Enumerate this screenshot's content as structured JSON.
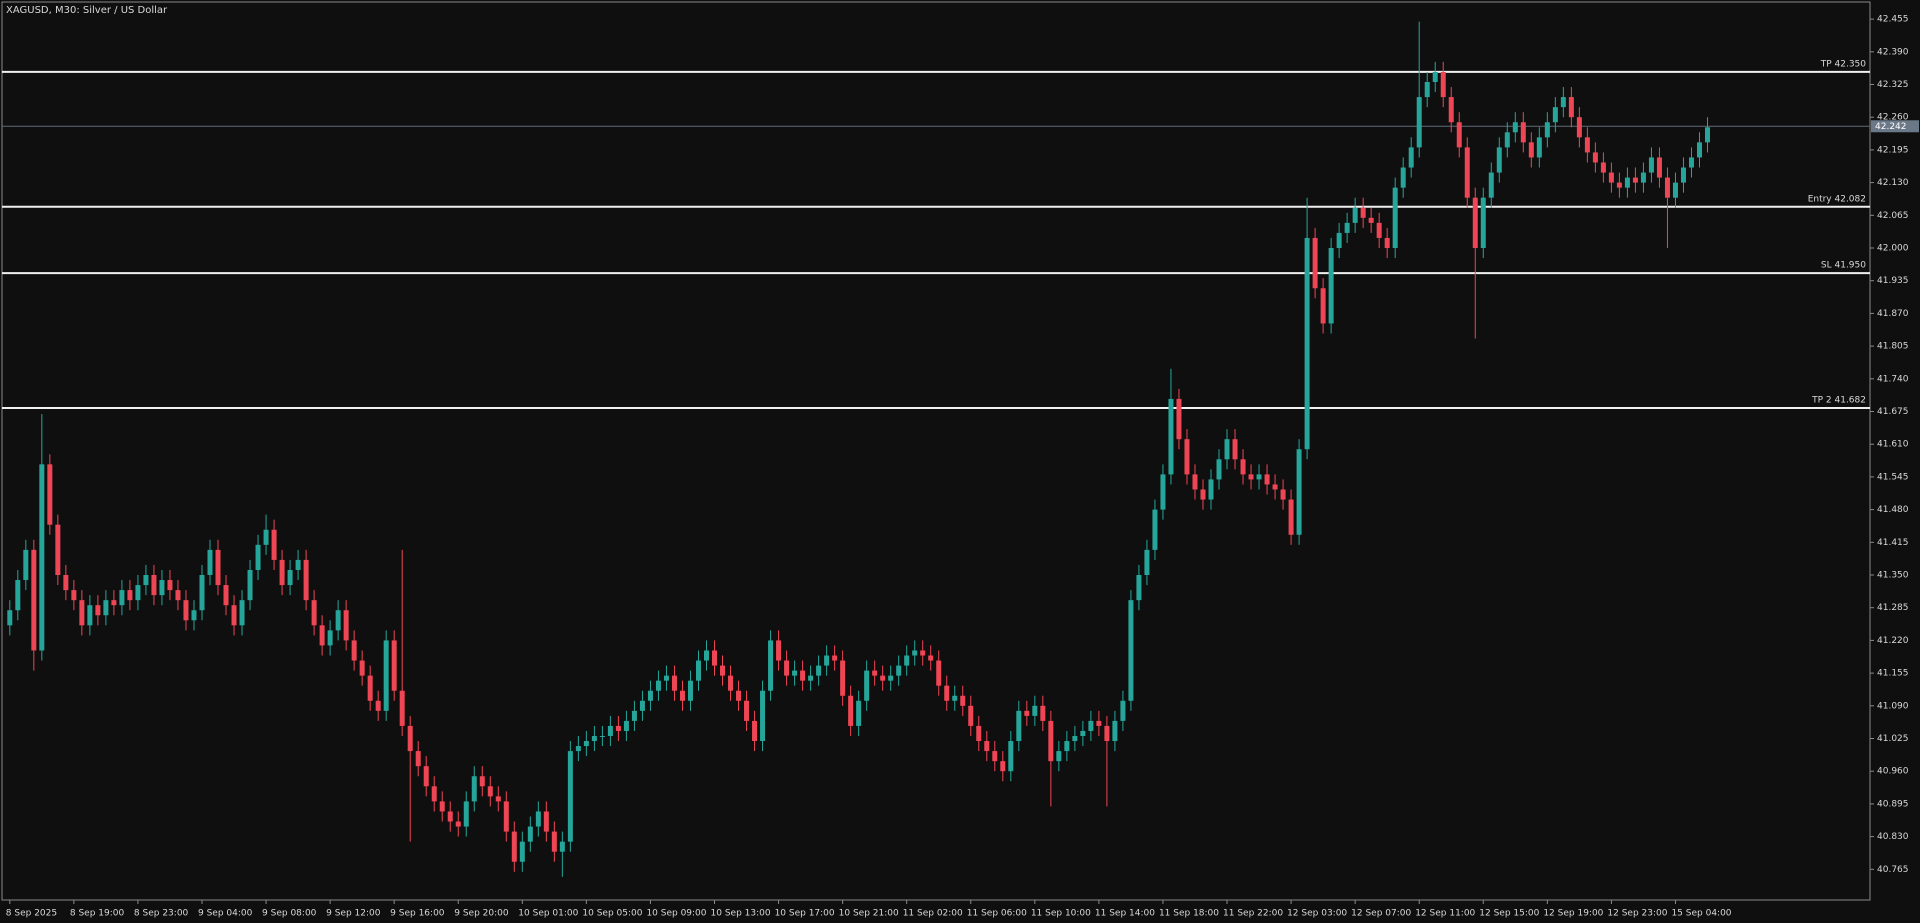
{
  "chart_data": {
    "type": "candlestick",
    "title": "XAGUSD, M30:  Silver / US Dollar",
    "categories": [
      "8 Sep 2025",
      null,
      null,
      null,
      null,
      null,
      null,
      null,
      "8 Sep 19:00",
      null,
      null,
      null,
      null,
      null,
      null,
      null,
      "8 Sep 23:00",
      null,
      null,
      null,
      null,
      null,
      null,
      null,
      "9 Sep 04:00",
      null,
      null,
      null,
      null,
      null,
      null,
      null,
      "9 Sep 08:00",
      null,
      null,
      null,
      null,
      null,
      null,
      null,
      "9 Sep 12:00",
      null,
      null,
      null,
      null,
      null,
      null,
      null,
      "9 Sep 16:00",
      null,
      null,
      null,
      null,
      null,
      null,
      null,
      "9 Sep 20:00",
      null,
      null,
      null,
      null,
      null,
      null,
      null,
      "10 Sep 01:00",
      null,
      null,
      null,
      null,
      null,
      null,
      null,
      "10 Sep 05:00",
      null,
      null,
      null,
      null,
      null,
      null,
      null,
      "10 Sep 09:00",
      null,
      null,
      null,
      null,
      null,
      null,
      null,
      "10 Sep 13:00",
      null,
      null,
      null,
      null,
      null,
      null,
      null,
      "10 Sep 17:00",
      null,
      null,
      null,
      null,
      null,
      null,
      null,
      "10 Sep 21:00",
      null,
      null,
      null,
      null,
      null,
      null,
      null,
      "11 Sep 02:00",
      null,
      null,
      null,
      null,
      null,
      null,
      null,
      "11 Sep 06:00",
      null,
      null,
      null,
      null,
      null,
      null,
      null,
      "11 Sep 10:00",
      null,
      null,
      null,
      null,
      null,
      null,
      null,
      "11 Sep 14:00",
      null,
      null,
      null,
      null,
      null,
      null,
      null,
      "11 Sep 18:00",
      null,
      null,
      null,
      null,
      null,
      null,
      null,
      "11 Sep 22:00",
      null,
      null,
      null,
      null,
      null,
      null,
      null,
      "12 Sep 03:00",
      null,
      null,
      null,
      null,
      null,
      null,
      null,
      "12 Sep 07:00",
      null,
      null,
      null,
      null,
      null,
      null,
      null,
      "12 Sep 11:00",
      null,
      null,
      null,
      null,
      null,
      null,
      null,
      "12 Sep 15:00",
      null,
      null,
      null,
      null,
      null,
      null,
      null,
      "12 Sep 19:00",
      null,
      null,
      null,
      null,
      null,
      null,
      null,
      "12 Sep 23:00",
      null,
      null,
      null,
      null,
      null,
      null,
      null,
      "15 Sep 04:00",
      null,
      null,
      null,
      null
    ],
    "open": [
      41.25,
      41.28,
      41.34,
      41.4,
      41.2,
      41.57,
      41.45,
      41.35,
      41.32,
      41.3,
      41.25,
      41.29,
      41.27,
      41.3,
      41.29,
      41.32,
      41.3,
      41.33,
      41.35,
      41.31,
      41.34,
      41.32,
      41.3,
      41.26,
      41.28,
      41.35,
      41.4,
      41.33,
      41.29,
      41.25,
      41.3,
      41.36,
      41.41,
      41.44,
      41.38,
      41.33,
      41.36,
      41.38,
      41.3,
      41.25,
      41.21,
      41.24,
      41.28,
      41.22,
      41.18,
      41.15,
      41.1,
      41.08,
      41.22,
      41.12,
      41.05,
      41.0,
      40.97,
      40.93,
      40.9,
      40.88,
      40.86,
      40.85,
      40.9,
      40.95,
      40.93,
      40.91,
      40.9,
      40.84,
      40.78,
      40.82,
      40.85,
      40.88,
      40.84,
      40.8,
      40.82,
      41.0,
      41.01,
      41.02,
      41.03,
      41.03,
      41.05,
      41.04,
      41.06,
      41.08,
      41.1,
      41.12,
      41.14,
      41.15,
      41.12,
      41.1,
      41.14,
      41.18,
      41.2,
      41.17,
      41.15,
      41.12,
      41.1,
      41.06,
      41.02,
      41.12,
      41.22,
      41.18,
      41.15,
      41.16,
      41.14,
      41.15,
      41.17,
      41.19,
      41.18,
      41.11,
      41.05,
      41.1,
      41.16,
      41.15,
      41.14,
      41.15,
      41.17,
      41.19,
      41.2,
      41.19,
      41.18,
      41.13,
      41.1,
      41.11,
      41.09,
      41.05,
      41.02,
      41.0,
      40.98,
      40.96,
      41.02,
      41.08,
      41.07,
      41.09,
      41.06,
      40.98,
      41.0,
      41.02,
      41.03,
      41.04,
      41.06,
      41.05,
      41.02,
      41.06,
      41.1,
      41.3,
      41.35,
      41.4,
      41.48,
      41.55,
      41.7,
      41.62,
      41.55,
      41.52,
      41.5,
      41.54,
      41.58,
      41.62,
      41.58,
      41.55,
      41.54,
      41.55,
      41.53,
      41.52,
      41.5,
      41.43,
      41.6,
      42.02,
      41.92,
      41.85,
      42.0,
      42.03,
      42.05,
      42.08,
      42.06,
      42.05,
      42.02,
      42.0,
      42.12,
      42.16,
      42.2,
      42.3,
      42.33,
      42.35,
      42.3,
      42.25,
      42.2,
      42.1,
      42.0,
      42.1,
      42.15,
      42.2,
      42.23,
      42.25,
      42.21,
      42.18,
      42.22,
      42.25,
      42.28,
      42.3,
      42.26,
      42.22,
      42.19,
      42.17,
      42.15,
      42.13,
      42.12,
      42.14,
      42.13,
      42.15,
      42.18,
      42.14,
      42.1,
      42.13,
      42.16,
      42.18,
      42.21
    ],
    "high": [
      41.3,
      41.36,
      41.42,
      41.42,
      41.67,
      41.59,
      41.47,
      41.37,
      41.34,
      41.32,
      41.31,
      41.31,
      41.32,
      41.32,
      41.34,
      41.34,
      41.35,
      41.37,
      41.37,
      41.36,
      41.36,
      41.34,
      41.32,
      41.3,
      41.37,
      41.42,
      41.42,
      41.35,
      41.31,
      41.32,
      41.38,
      41.43,
      41.47,
      41.46,
      41.4,
      41.38,
      41.4,
      41.4,
      41.32,
      41.27,
      41.26,
      41.3,
      41.3,
      41.24,
      41.2,
      41.17,
      41.12,
      41.24,
      41.24,
      41.4,
      41.07,
      41.02,
      40.99,
      40.95,
      40.92,
      40.9,
      40.88,
      40.92,
      40.97,
      40.97,
      40.95,
      40.93,
      40.92,
      40.86,
      40.84,
      40.87,
      40.9,
      40.9,
      40.86,
      40.84,
      41.02,
      41.03,
      41.04,
      41.05,
      41.05,
      41.07,
      41.07,
      41.08,
      41.1,
      41.12,
      41.14,
      41.16,
      41.17,
      41.17,
      41.14,
      41.16,
      41.2,
      41.22,
      41.22,
      41.19,
      41.17,
      41.14,
      41.12,
      41.08,
      41.14,
      41.24,
      41.24,
      41.2,
      41.18,
      41.18,
      41.17,
      41.19,
      41.21,
      41.21,
      41.2,
      41.13,
      41.12,
      41.18,
      41.18,
      41.17,
      41.17,
      41.19,
      41.21,
      41.22,
      41.22,
      41.21,
      41.2,
      41.15,
      41.13,
      41.13,
      41.11,
      41.07,
      41.04,
      41.02,
      41.0,
      41.04,
      41.1,
      41.1,
      41.11,
      41.11,
      41.08,
      41.02,
      41.04,
      41.05,
      41.06,
      41.08,
      41.08,
      41.07,
      41.08,
      41.12,
      41.32,
      41.37,
      41.42,
      41.5,
      41.57,
      41.76,
      41.72,
      41.64,
      41.57,
      41.54,
      41.56,
      41.6,
      41.64,
      41.64,
      41.6,
      41.57,
      41.57,
      41.57,
      41.55,
      41.54,
      41.52,
      41.62,
      42.1,
      42.04,
      41.94,
      42.02,
      42.05,
      42.07,
      42.1,
      42.1,
      42.08,
      42.07,
      42.04,
      42.14,
      42.18,
      42.22,
      42.45,
      42.35,
      42.37,
      42.37,
      42.32,
      42.27,
      42.22,
      42.12,
      42.12,
      42.17,
      42.22,
      42.25,
      42.27,
      42.27,
      42.23,
      42.24,
      42.27,
      42.3,
      42.32,
      42.32,
      42.28,
      42.24,
      42.21,
      42.19,
      42.17,
      42.15,
      42.16,
      42.16,
      42.17,
      42.2,
      42.2,
      42.16,
      42.15,
      42.18,
      42.2,
      42.23,
      42.26
    ],
    "low": [
      41.23,
      41.26,
      41.32,
      41.16,
      41.18,
      41.43,
      41.33,
      41.3,
      41.28,
      41.23,
      41.23,
      41.25,
      41.25,
      41.27,
      41.27,
      41.28,
      41.28,
      41.31,
      41.29,
      41.29,
      41.3,
      41.28,
      41.24,
      41.24,
      41.26,
      41.33,
      41.31,
      41.27,
      41.23,
      41.23,
      41.28,
      41.34,
      41.39,
      41.36,
      41.31,
      41.31,
      41.34,
      41.28,
      41.23,
      41.19,
      41.19,
      41.22,
      41.2,
      41.16,
      41.13,
      41.08,
      41.06,
      41.06,
      41.1,
      41.03,
      40.82,
      40.95,
      40.91,
      40.88,
      40.86,
      40.84,
      40.83,
      40.83,
      40.88,
      40.91,
      40.89,
      40.88,
      40.82,
      40.76,
      40.76,
      40.8,
      40.83,
      40.82,
      40.78,
      40.75,
      40.8,
      40.98,
      40.99,
      41.0,
      41.01,
      41.01,
      41.02,
      41.02,
      41.04,
      41.06,
      41.08,
      41.1,
      41.12,
      41.1,
      41.08,
      41.08,
      41.12,
      41.16,
      41.15,
      41.13,
      41.1,
      41.08,
      41.04,
      41.0,
      41.0,
      41.1,
      41.16,
      41.13,
      41.13,
      41.12,
      41.12,
      41.13,
      41.15,
      41.16,
      41.09,
      41.03,
      41.03,
      41.08,
      41.13,
      41.12,
      41.12,
      41.13,
      41.15,
      41.17,
      41.17,
      41.16,
      41.11,
      41.08,
      41.08,
      41.07,
      41.03,
      41.0,
      40.98,
      40.96,
      40.94,
      40.94,
      41.0,
      41.05,
      41.05,
      41.04,
      40.89,
      40.96,
      40.98,
      41.0,
      41.01,
      41.02,
      41.03,
      40.89,
      41.0,
      41.04,
      41.08,
      41.28,
      41.33,
      41.38,
      41.46,
      41.53,
      41.6,
      41.53,
      41.5,
      41.48,
      41.48,
      41.52,
      41.56,
      41.56,
      41.53,
      41.52,
      41.52,
      41.51,
      41.5,
      41.48,
      41.41,
      41.41,
      41.58,
      41.9,
      41.83,
      41.83,
      41.98,
      42.01,
      42.03,
      42.04,
      42.03,
      42.0,
      41.98,
      41.98,
      42.1,
      42.14,
      42.18,
      42.28,
      42.31,
      42.28,
      42.23,
      42.18,
      42.08,
      41.82,
      41.98,
      42.08,
      42.13,
      42.18,
      42.21,
      42.19,
      42.16,
      42.16,
      42.2,
      42.23,
      42.26,
      42.24,
      42.2,
      42.17,
      42.15,
      42.13,
      42.11,
      42.1,
      42.1,
      42.11,
      42.11,
      42.13,
      42.12,
      42.0,
      42.08,
      42.11,
      42.14,
      42.16,
      42.19
    ],
    "close": [
      41.28,
      41.34,
      41.4,
      41.2,
      41.57,
      41.45,
      41.35,
      41.32,
      41.3,
      41.25,
      41.29,
      41.27,
      41.3,
      41.29,
      41.32,
      41.3,
      41.33,
      41.35,
      41.31,
      41.34,
      41.32,
      41.3,
      41.26,
      41.28,
      41.35,
      41.4,
      41.33,
      41.29,
      41.25,
      41.3,
      41.36,
      41.41,
      41.44,
      41.38,
      41.33,
      41.36,
      41.38,
      41.3,
      41.25,
      41.21,
      41.24,
      41.28,
      41.22,
      41.18,
      41.15,
      41.1,
      41.08,
      41.22,
      41.12,
      41.05,
      41.0,
      40.97,
      40.93,
      40.9,
      40.88,
      40.86,
      40.85,
      40.9,
      40.95,
      40.93,
      40.91,
      40.9,
      40.84,
      40.78,
      40.82,
      40.85,
      40.88,
      40.84,
      40.8,
      40.82,
      41.0,
      41.01,
      41.02,
      41.03,
      41.03,
      41.05,
      41.04,
      41.06,
      41.08,
      41.1,
      41.12,
      41.14,
      41.15,
      41.12,
      41.1,
      41.14,
      41.18,
      41.2,
      41.17,
      41.15,
      41.12,
      41.1,
      41.06,
      41.02,
      41.12,
      41.22,
      41.18,
      41.15,
      41.16,
      41.14,
      41.15,
      41.17,
      41.19,
      41.18,
      41.11,
      41.05,
      41.1,
      41.16,
      41.15,
      41.14,
      41.15,
      41.17,
      41.19,
      41.2,
      41.19,
      41.18,
      41.13,
      41.1,
      41.11,
      41.09,
      41.05,
      41.02,
      41.0,
      40.98,
      40.96,
      41.02,
      41.08,
      41.07,
      41.09,
      41.06,
      40.98,
      41.0,
      41.02,
      41.03,
      41.04,
      41.06,
      41.05,
      41.02,
      41.06,
      41.1,
      41.3,
      41.35,
      41.4,
      41.48,
      41.55,
      41.7,
      41.62,
      41.55,
      41.52,
      41.5,
      41.54,
      41.58,
      41.62,
      41.58,
      41.55,
      41.54,
      41.55,
      41.53,
      41.52,
      41.5,
      41.43,
      41.6,
      42.02,
      41.92,
      41.85,
      42.0,
      42.03,
      42.05,
      42.08,
      42.06,
      42.05,
      42.02,
      42.0,
      42.12,
      42.16,
      42.2,
      42.3,
      42.33,
      42.35,
      42.3,
      42.25,
      42.2,
      42.1,
      42.0,
      42.1,
      42.15,
      42.2,
      42.23,
      42.25,
      42.21,
      42.18,
      42.22,
      42.25,
      42.28,
      42.3,
      42.26,
      42.22,
      42.19,
      42.17,
      42.15,
      42.13,
      42.12,
      42.14,
      42.13,
      42.15,
      42.18,
      42.14,
      42.1,
      42.13,
      42.16,
      42.18,
      42.21,
      42.24
    ],
    "up_color": "#26a69a",
    "down_color": "#ef4655",
    "ylim": [
      40.704,
      42.489
    ],
    "yticks": [
      42.455,
      {
        "value": 42.39,
        "label": "42.390"
      },
      42.325,
      {
        "value": 42.26,
        "label": "42.260"
      },
      42.195,
      {
        "value": 42.13,
        "label": "42.130"
      },
      42.065,
      {
        "value": 42.0,
        "label": "42.000"
      },
      41.935,
      {
        "value": 41.87,
        "label": "41.870"
      },
      41.805,
      {
        "value": 41.74,
        "label": "41.740"
      },
      41.675,
      {
        "value": 41.61,
        "label": "41.610"
      },
      41.545,
      {
        "value": 41.48,
        "label": "41.480"
      },
      41.415,
      {
        "value": 41.35,
        "label": "41.350"
      },
      41.285,
      {
        "value": 41.22,
        "label": "41.220"
      },
      41.155,
      {
        "value": 41.09,
        "label": "41.090"
      },
      41.025,
      {
        "value": 40.96,
        "label": "40.960"
      },
      40.895,
      {
        "value": 40.83,
        "label": "40.830"
      },
      40.765
    ],
    "levels": [
      {
        "label": "TP 42.350",
        "value": 42.35
      },
      {
        "label": "Entry 42.082",
        "value": 42.082
      },
      {
        "label": "SL 41.950",
        "value": 41.95
      },
      {
        "label": "TP 2 41.682",
        "value": 41.682
      }
    ],
    "current_price": 42.242
  }
}
